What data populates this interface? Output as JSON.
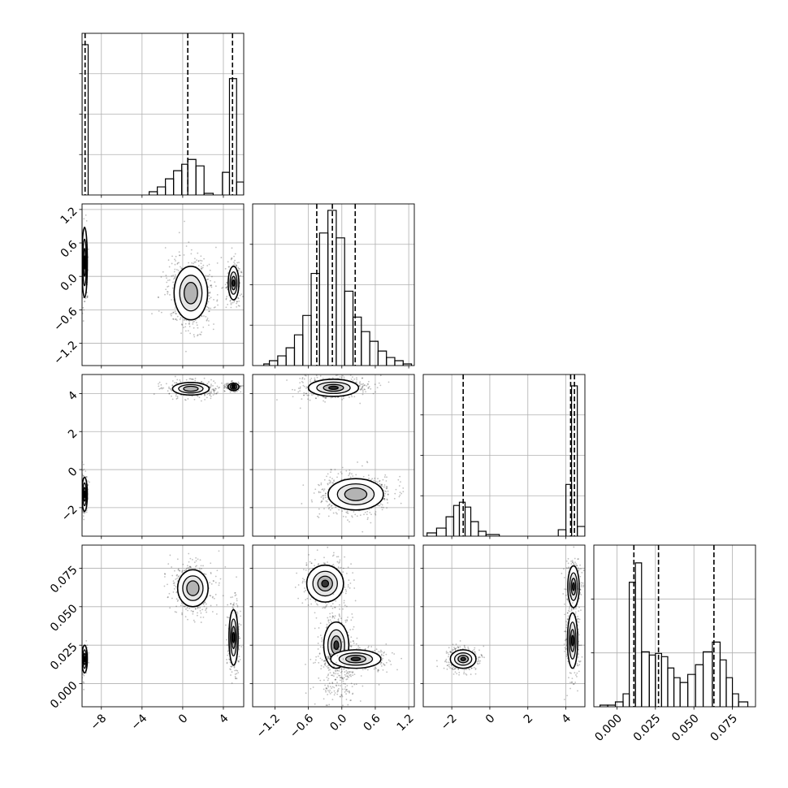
{
  "chart_data": {
    "type": "corner",
    "grid": true,
    "params": [
      {
        "range": [
          -9.9,
          6.0
        ],
        "ticks": [
          -8,
          -4,
          0,
          4
        ],
        "tick_labels": [
          "−8",
          "−4",
          "0",
          "4"
        ],
        "quantiles": [
          -9.6,
          0.5,
          4.9
        ],
        "hist": [
          {
            "x0": -9.9,
            "x1": -9.3,
            "h": 0.93
          },
          {
            "x0": -3.3,
            "x1": -2.5,
            "h": 0.02
          },
          {
            "x0": -2.5,
            "x1": -1.7,
            "h": 0.05
          },
          {
            "x0": -1.7,
            "x1": -0.9,
            "h": 0.1
          },
          {
            "x0": -0.9,
            "x1": -0.1,
            "h": 0.15
          },
          {
            "x0": -0.1,
            "x1": 0.5,
            "h": 0.19
          },
          {
            "x0": 0.5,
            "x1": 1.3,
            "h": 0.22
          },
          {
            "x0": 1.3,
            "x1": 2.1,
            "h": 0.18
          },
          {
            "x0": 2.1,
            "x1": 3.0,
            "h": 0.01
          },
          {
            "x0": 3.9,
            "x1": 4.6,
            "h": 0.14
          },
          {
            "x0": 4.6,
            "x1": 5.3,
            "h": 0.72
          },
          {
            "x0": 5.3,
            "x1": 6.0,
            "h": 0.08
          }
        ]
      },
      {
        "range": [
          -1.6,
          1.3
        ],
        "ticks": [
          -1.2,
          -0.6,
          0.0,
          0.6,
          1.2
        ],
        "tick_labels": [
          "−1.2",
          "−0.6",
          "0.0",
          "0.6",
          "1.2"
        ],
        "quantiles": [
          -0.45,
          -0.17,
          0.24
        ],
        "hist": [
          {
            "x0": -1.4,
            "x1": -1.3,
            "h": 0.01
          },
          {
            "x0": -1.3,
            "x1": -1.15,
            "h": 0.03
          },
          {
            "x0": -1.15,
            "x1": -1.0,
            "h": 0.06
          },
          {
            "x0": -1.0,
            "x1": -0.85,
            "h": 0.11
          },
          {
            "x0": -0.85,
            "x1": -0.7,
            "h": 0.19
          },
          {
            "x0": -0.7,
            "x1": -0.55,
            "h": 0.31
          },
          {
            "x0": -0.55,
            "x1": -0.4,
            "h": 0.57
          },
          {
            "x0": -0.4,
            "x1": -0.25,
            "h": 0.82
          },
          {
            "x0": -0.25,
            "x1": -0.1,
            "h": 0.96
          },
          {
            "x0": -0.1,
            "x1": 0.05,
            "h": 0.79
          },
          {
            "x0": 0.05,
            "x1": 0.2,
            "h": 0.46
          },
          {
            "x0": 0.2,
            "x1": 0.35,
            "h": 0.3
          },
          {
            "x0": 0.35,
            "x1": 0.5,
            "h": 0.21
          },
          {
            "x0": 0.5,
            "x1": 0.65,
            "h": 0.15
          },
          {
            "x0": 0.65,
            "x1": 0.8,
            "h": 0.09
          },
          {
            "x0": 0.8,
            "x1": 0.95,
            "h": 0.05
          },
          {
            "x0": 0.95,
            "x1": 1.1,
            "h": 0.03
          },
          {
            "x0": 1.1,
            "x1": 1.25,
            "h": 0.01
          }
        ]
      },
      {
        "range": [
          -3.5,
          5.0
        ],
        "ticks": [
          -2,
          0,
          2,
          4
        ],
        "tick_labels": [
          "−2",
          "0",
          "2",
          "4"
        ],
        "quantiles": [
          -1.4,
          4.25,
          4.45
        ],
        "hist": [
          {
            "x0": -3.3,
            "x1": -2.8,
            "h": 0.02
          },
          {
            "x0": -2.8,
            "x1": -2.3,
            "h": 0.05
          },
          {
            "x0": -2.3,
            "x1": -1.9,
            "h": 0.12
          },
          {
            "x0": -1.9,
            "x1": -1.6,
            "h": 0.19
          },
          {
            "x0": -1.6,
            "x1": -1.3,
            "h": 0.21
          },
          {
            "x0": -1.3,
            "x1": -1.0,
            "h": 0.18
          },
          {
            "x0": -1.0,
            "x1": -0.6,
            "h": 0.09
          },
          {
            "x0": -0.6,
            "x1": -0.2,
            "h": 0.03
          },
          {
            "x0": -0.2,
            "x1": 0.5,
            "h": 0.01
          },
          {
            "x0": 3.6,
            "x1": 4.0,
            "h": 0.04
          },
          {
            "x0": 4.0,
            "x1": 4.3,
            "h": 0.32
          },
          {
            "x0": 4.3,
            "x1": 4.6,
            "h": 0.93
          },
          {
            "x0": 4.6,
            "x1": 5.0,
            "h": 0.06
          }
        ]
      },
      {
        "range": [
          -0.015,
          0.09
        ],
        "ticks": [
          0.0,
          0.025,
          0.05,
          0.075
        ],
        "tick_labels": [
          "0.000",
          "0.025",
          "0.050",
          "0.075"
        ],
        "quantiles": [
          0.011,
          0.027,
          0.063
        ],
        "hist": [
          {
            "x0": -0.011,
            "x1": -0.006,
            "h": 0.01
          },
          {
            "x0": -0.006,
            "x1": -0.001,
            "h": 0.01
          },
          {
            "x0": -0.001,
            "x1": 0.004,
            "h": 0.03
          },
          {
            "x0": 0.004,
            "x1": 0.008,
            "h": 0.08
          },
          {
            "x0": 0.008,
            "x1": 0.012,
            "h": 0.77
          },
          {
            "x0": 0.012,
            "x1": 0.016,
            "h": 0.89
          },
          {
            "x0": 0.016,
            "x1": 0.021,
            "h": 0.34
          },
          {
            "x0": 0.021,
            "x1": 0.025,
            "h": 0.32
          },
          {
            "x0": 0.025,
            "x1": 0.029,
            "h": 0.33
          },
          {
            "x0": 0.029,
            "x1": 0.033,
            "h": 0.31
          },
          {
            "x0": 0.033,
            "x1": 0.037,
            "h": 0.24
          },
          {
            "x0": 0.037,
            "x1": 0.041,
            "h": 0.18
          },
          {
            "x0": 0.041,
            "x1": 0.046,
            "h": 0.15
          },
          {
            "x0": 0.046,
            "x1": 0.051,
            "h": 0.2
          },
          {
            "x0": 0.051,
            "x1": 0.056,
            "h": 0.26
          },
          {
            "x0": 0.056,
            "x1": 0.062,
            "h": 0.34
          },
          {
            "x0": 0.062,
            "x1": 0.067,
            "h": 0.4
          },
          {
            "x0": 0.067,
            "x1": 0.071,
            "h": 0.29
          },
          {
            "x0": 0.071,
            "x1": 0.075,
            "h": 0.18
          },
          {
            "x0": 0.075,
            "x1": 0.079,
            "h": 0.08
          },
          {
            "x0": 0.079,
            "x1": 0.085,
            "h": 0.03
          }
        ]
      }
    ],
    "hist_ymax": [
      1.0,
      1.0,
      1.0,
      1.0
    ],
    "hist_yticks": [
      [
        0.25,
        0.5,
        0.75
      ],
      [
        0.25,
        0.5,
        0.75
      ],
      [
        0.25,
        0.5,
        0.75
      ],
      [
        0.3333,
        0.6667
      ]
    ],
    "scatter_blobs": [
      {
        "row": 1,
        "col": 0,
        "cx": -9.65,
        "cy": 0.25,
        "sx": 0.18,
        "sy": 0.42,
        "n": 130,
        "levels": 3
      },
      {
        "row": 1,
        "col": 0,
        "cx": 0.8,
        "cy": -0.3,
        "sx": 1.1,
        "sy": 0.32,
        "n": 650,
        "levels": 2
      },
      {
        "row": 1,
        "col": 0,
        "cx": 5.0,
        "cy": -0.12,
        "sx": 0.35,
        "sy": 0.2,
        "n": 230,
        "levels": 3
      },
      {
        "row": 2,
        "col": 0,
        "cx": -9.65,
        "cy": -1.3,
        "sx": 0.18,
        "sy": 0.6,
        "n": 110,
        "levels": 3
      },
      {
        "row": 2,
        "col": 0,
        "cx": 0.8,
        "cy": 4.25,
        "sx": 1.2,
        "sy": 0.22,
        "n": 420,
        "levels": 2
      },
      {
        "row": 2,
        "col": 0,
        "cx": 5.0,
        "cy": 4.35,
        "sx": 0.35,
        "sy": 0.13,
        "n": 170,
        "levels": 3
      },
      {
        "row": 2,
        "col": 1,
        "cx": -0.15,
        "cy": 4.3,
        "sx": 0.3,
        "sy": 0.3,
        "n": 520,
        "levels": 3
      },
      {
        "row": 2,
        "col": 1,
        "cx": 0.25,
        "cy": -1.3,
        "sx": 0.33,
        "sy": 0.55,
        "n": 600,
        "levels": 2
      },
      {
        "row": 3,
        "col": 0,
        "cx": -9.65,
        "cy": 0.016,
        "sx": 0.18,
        "sy": 0.006,
        "n": 110,
        "levels": 3
      },
      {
        "row": 3,
        "col": 0,
        "cx": 1.0,
        "cy": 0.062,
        "sx": 1.0,
        "sy": 0.008,
        "n": 480,
        "levels": 2
      },
      {
        "row": 3,
        "col": 0,
        "cx": 5.0,
        "cy": 0.03,
        "sx": 0.3,
        "sy": 0.012,
        "n": 260,
        "levels": 3
      },
      {
        "row": 3,
        "col": 1,
        "cx": -0.3,
        "cy": 0.065,
        "sx": 0.22,
        "sy": 0.008,
        "n": 320,
        "levels": 3
      },
      {
        "row": 3,
        "col": 1,
        "cx": -0.1,
        "cy": 0.025,
        "sx": 0.15,
        "sy": 0.01,
        "n": 420,
        "levels": 3
      },
      {
        "row": 3,
        "col": 1,
        "cx": 0.25,
        "cy": 0.016,
        "sx": 0.3,
        "sy": 0.004,
        "n": 360,
        "levels": 3
      },
      {
        "row": 3,
        "col": 1,
        "cx": -0.05,
        "cy": 0.0,
        "sx": 0.2,
        "sy": 0.008,
        "n": 120,
        "levels": 0
      },
      {
        "row": 3,
        "col": 2,
        "cx": -1.4,
        "cy": 0.016,
        "sx": 0.45,
        "sy": 0.004,
        "n": 360,
        "levels": 3
      },
      {
        "row": 3,
        "col": 2,
        "cx": 4.4,
        "cy": 0.063,
        "sx": 0.2,
        "sy": 0.009,
        "n": 260,
        "levels": 3
      },
      {
        "row": 3,
        "col": 2,
        "cx": 4.35,
        "cy": 0.028,
        "sx": 0.18,
        "sy": 0.012,
        "n": 300,
        "levels": 3
      }
    ]
  }
}
